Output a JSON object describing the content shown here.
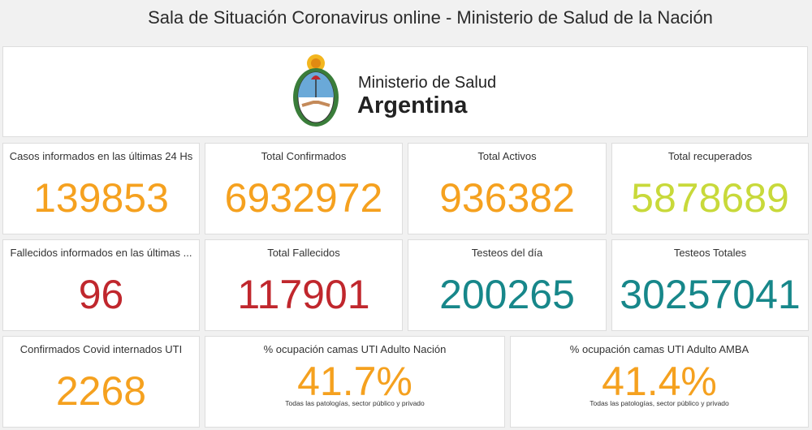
{
  "header": {
    "title": "Sala de Situación Coronavirus online - Ministerio de Salud de la Nación"
  },
  "logo": {
    "line1": "Ministerio de Salud",
    "line2": "Argentina"
  },
  "cards": [
    {
      "title": "Casos informados en las últimas 24 Hs",
      "value": "139853",
      "color": "#f5a11f"
    },
    {
      "title": "Total Confirmados",
      "value": "6932972",
      "color": "#f5a11f"
    },
    {
      "title": "Total Activos",
      "value": "936382",
      "color": "#f5a11f"
    },
    {
      "title": "Total recuperados",
      "value": "5878689",
      "color": "#c8d93a"
    },
    {
      "title": "Fallecidos informados en las últimas ...",
      "value": "96",
      "color": "#c0272d"
    },
    {
      "title": "Total Fallecidos",
      "value": "117901",
      "color": "#c0272d"
    },
    {
      "title": "Testeos del día",
      "value": "200265",
      "color": "#17878a"
    },
    {
      "title": "Testeos Totales",
      "value": "30257041",
      "color": "#17878a"
    },
    {
      "title": "Confirmados Covid internados UTI",
      "value": "2268",
      "color": "#f5a11f"
    },
    {
      "title": "% ocupación camas UTI Adulto Nación",
      "value": "41.7%",
      "subtitle": "Todas las patologías, sector público y privado",
      "color": "#f5a11f"
    },
    {
      "title": "% ocupación camas UTI Adulto AMBA",
      "value": "41.4%",
      "subtitle": "Todas las patologías, sector público y privado",
      "color": "#f5a11f"
    }
  ]
}
